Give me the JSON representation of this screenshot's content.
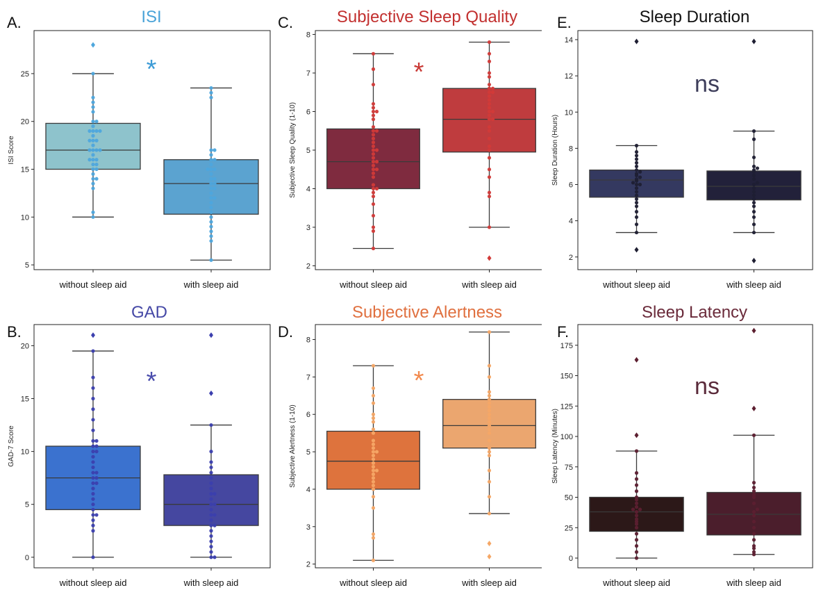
{
  "categories": [
    "without sleep aid",
    "with sleep aid"
  ],
  "chart_data": [
    {
      "type": "box",
      "letter": "A.",
      "title": "ISI",
      "title_color": "#4aa3d8",
      "ylabel": "ISI Score",
      "ylim": [
        4.5,
        29.5
      ],
      "yticks": [
        5,
        10,
        15,
        20,
        25
      ],
      "annotation": "*",
      "annotation_color": "#3d9bd6",
      "point_color": "#4ea7dd",
      "boxes": [
        {
          "category": "without sleep aid",
          "color": "#8ec3cc",
          "q1": 15,
          "median": 17,
          "q3": 19.8,
          "whisker_low": 10,
          "whisker_high": 25,
          "outliers": [
            28
          ],
          "points": [
            10,
            10.5,
            13,
            13.5,
            14,
            14,
            14.5,
            15,
            15,
            15.5,
            15.5,
            16,
            16,
            16,
            16.5,
            17,
            17,
            17,
            17,
            17.5,
            18,
            18,
            18,
            18.5,
            19,
            19,
            19,
            19,
            19.5,
            20,
            20,
            21,
            21.5,
            22,
            22.5,
            25
          ]
        },
        {
          "category": "with sleep aid",
          "color": "#5ba3d0",
          "q1": 10.3,
          "median": 13.5,
          "q3": 16,
          "whisker_low": 5.5,
          "whisker_high": 23.5,
          "outliers": [],
          "points": [
            5.5,
            7.5,
            8,
            8.5,
            9,
            9.5,
            10,
            10.5,
            11,
            11.5,
            12,
            12,
            12.5,
            13,
            13,
            13.5,
            13.5,
            14,
            14,
            14.5,
            15,
            15,
            15,
            15.5,
            16,
            16,
            16.5,
            17,
            17,
            22.5,
            23,
            23.5
          ]
        }
      ]
    },
    {
      "type": "box",
      "letter": "C.",
      "title": "Subjective Sleep Quality",
      "title_color": "#c2302f",
      "ylabel": "Subjective Sleep Quality (1-10)",
      "ylim": [
        1.9,
        8.1
      ],
      "yticks": [
        2,
        3,
        4,
        5,
        6,
        7,
        8
      ],
      "annotation": "*",
      "annotation_color": "#c93a36",
      "point_color": "#d23a38",
      "boxes": [
        {
          "category": "without sleep aid",
          "color": "#7f2b3f",
          "q1": 4,
          "median": 4.7,
          "q3": 5.55,
          "whisker_low": 2.45,
          "whisker_high": 7.5,
          "outliers": [],
          "points": [
            2.45,
            2.9,
            3,
            3.3,
            3.6,
            3.8,
            3.9,
            4,
            4,
            4.1,
            4.3,
            4.4,
            4.5,
            4.5,
            4.6,
            4.7,
            4.7,
            4.8,
            4.9,
            5,
            5,
            5.1,
            5.2,
            5.3,
            5.4,
            5.5,
            5.5,
            5.6,
            5.8,
            5.9,
            6,
            6,
            6.1,
            6.2,
            6.7,
            7.1,
            7.5
          ]
        },
        {
          "category": "with sleep aid",
          "color": "#bf3c3e",
          "q1": 4.95,
          "median": 5.8,
          "q3": 6.6,
          "whisker_low": 3,
          "whisker_high": 7.8,
          "outliers": [
            2.2
          ],
          "points": [
            3,
            3.8,
            3.9,
            4.3,
            4.5,
            4.8,
            5,
            5.1,
            5.3,
            5.5,
            5.6,
            5.8,
            5.8,
            5.9,
            6,
            6,
            6.1,
            6.2,
            6.3,
            6.4,
            6.5,
            6.5,
            6.6,
            6.6,
            6.7,
            6.9,
            7,
            7.3,
            7.5,
            7.8
          ]
        }
      ]
    },
    {
      "type": "box",
      "letter": "E.",
      "title": "Sleep Duration",
      "title_color": "#111111",
      "ylabel": "Sleep Duration (Hours)",
      "ylim": [
        1.3,
        14.5
      ],
      "yticks": [
        2,
        4,
        6,
        8,
        10,
        12,
        14
      ],
      "annotation": "ns",
      "annotation_color": "#3d3d5a",
      "point_color": "#1f1f33",
      "boxes": [
        {
          "category": "without sleep aid",
          "color": "#343960",
          "q1": 5.3,
          "median": 6.25,
          "q3": 6.8,
          "whisker_low": 3.35,
          "whisker_high": 8.15,
          "outliers": [
            2.4,
            13.9
          ],
          "points": [
            3.35,
            3.8,
            4.2,
            4.5,
            4.8,
            5,
            5.2,
            5.4,
            5.6,
            5.8,
            6,
            6,
            6.1,
            6.2,
            6.3,
            6.4,
            6.5,
            6.6,
            6.7,
            6.8,
            7,
            7.2,
            7.4,
            7.6,
            7.8,
            8.15
          ]
        },
        {
          "category": "with sleep aid",
          "color": "#22213a",
          "q1": 5.15,
          "median": 5.9,
          "q3": 6.75,
          "whisker_low": 3.35,
          "whisker_high": 8.95,
          "outliers": [
            1.8,
            13.9
          ],
          "points": [
            3.35,
            3.8,
            4.2,
            4.5,
            4.8,
            5,
            5.2,
            5.4,
            5.6,
            5.8,
            6,
            6.1,
            6.3,
            6.5,
            6.7,
            6.8,
            6.9,
            7,
            7.5,
            8.5,
            8.95
          ]
        }
      ]
    },
    {
      "type": "box",
      "letter": "B.",
      "title": "GAD",
      "title_color": "#4548a6",
      "ylabel": "GAD-7 Score",
      "ylim": [
        -1,
        22
      ],
      "yticks": [
        0,
        5,
        10,
        15,
        20
      ],
      "annotation": "*",
      "annotation_color": "#4a4dad",
      "point_color": "#3b3fae",
      "boxes": [
        {
          "category": "without sleep aid",
          "color": "#3b72cf",
          "q1": 4.5,
          "median": 7.5,
          "q3": 10.5,
          "whisker_low": 0,
          "whisker_high": 19.5,
          "outliers": [
            21
          ],
          "points": [
            0,
            2.5,
            3,
            3.5,
            4,
            4,
            4.5,
            5,
            5.5,
            6,
            6.5,
            7,
            7,
            7.5,
            7.5,
            8,
            8,
            8.5,
            9,
            9.5,
            10,
            10,
            10.5,
            10.5,
            11,
            11,
            12,
            13,
            14,
            15,
            16,
            17,
            19.5
          ]
        },
        {
          "category": "with sleep aid",
          "color": "#4547a0",
          "q1": 3,
          "median": 5,
          "q3": 7.8,
          "whisker_low": 0,
          "whisker_high": 12.5,
          "outliers": [
            15.5,
            21
          ],
          "points": [
            0,
            0,
            0.5,
            1,
            1.5,
            2,
            2.5,
            3,
            3,
            3.5,
            4,
            4,
            4.5,
            5,
            5,
            5.5,
            6,
            6,
            6.5,
            7,
            7.5,
            8,
            8.5,
            9,
            10,
            12.5
          ]
        }
      ]
    },
    {
      "type": "box",
      "letter": "D.",
      "title": "Subjective Alertness",
      "title_color": "#e0703f",
      "ylabel": "Subjective Alertness (1-10)",
      "ylim": [
        1.9,
        8.4
      ],
      "yticks": [
        2,
        3,
        4,
        5,
        6,
        7,
        8
      ],
      "annotation": "*",
      "annotation_color": "#f28a4e",
      "point_color": "#f5a766",
      "boxes": [
        {
          "category": "without sleep aid",
          "color": "#de733d",
          "q1": 4,
          "median": 4.75,
          "q3": 5.55,
          "whisker_low": 2.1,
          "whisker_high": 7.3,
          "outliers": [],
          "points": [
            2.1,
            2.7,
            2.8,
            3.5,
            3.8,
            4,
            4.1,
            4.2,
            4.3,
            4.4,
            4.5,
            4.5,
            4.6,
            4.7,
            4.8,
            4.9,
            5,
            5,
            5.1,
            5.2,
            5.3,
            5.5,
            5.6,
            5.8,
            5.9,
            6,
            6.3,
            6.5,
            6.7,
            7.3
          ]
        },
        {
          "category": "with sleep aid",
          "color": "#eba66f",
          "q1": 5.1,
          "median": 5.7,
          "q3": 6.4,
          "whisker_low": 3.35,
          "whisker_high": 8.2,
          "outliers": [
            2.2,
            2.55
          ],
          "points": [
            3.35,
            3.8,
            4.2,
            4.5,
            4.9,
            5,
            5.1,
            5.3,
            5.5,
            5.6,
            5.7,
            5.8,
            5.9,
            6,
            6.1,
            6.2,
            6.3,
            6.4,
            6.5,
            6.6,
            7,
            7.3,
            8.2
          ]
        }
      ]
    },
    {
      "type": "box",
      "letter": "F.",
      "title": "Sleep Latency",
      "title_color": "#6a2a3a",
      "ylabel": "Sleep Latency (Minutes)",
      "ylim": [
        -8,
        192
      ],
      "yticks": [
        0,
        25,
        50,
        75,
        100,
        125,
        150,
        175
      ],
      "annotation": "ns",
      "annotation_color": "#5a2a3a",
      "point_color": "#5c1f30",
      "boxes": [
        {
          "category": "without sleep aid",
          "color": "#2c1818",
          "q1": 22,
          "median": 38,
          "q3": 50,
          "whisker_low": 0,
          "whisker_high": 88,
          "outliers": [
            101,
            163
          ],
          "points": [
            0,
            5,
            10,
            15,
            20,
            25,
            28,
            30,
            32,
            35,
            38,
            40,
            40,
            42,
            45,
            48,
            50,
            55,
            60,
            65,
            70,
            88
          ]
        },
        {
          "category": "with sleep aid",
          "color": "#4b1e2c",
          "q1": 19,
          "median": 36,
          "q3": 54,
          "whisker_low": 3,
          "whisker_high": 101,
          "outliers": [
            123,
            187
          ],
          "points": [
            3,
            5,
            8,
            10,
            15,
            20,
            25,
            30,
            35,
            38,
            40,
            45,
            50,
            52,
            55,
            58,
            62,
            101
          ]
        }
      ]
    }
  ]
}
